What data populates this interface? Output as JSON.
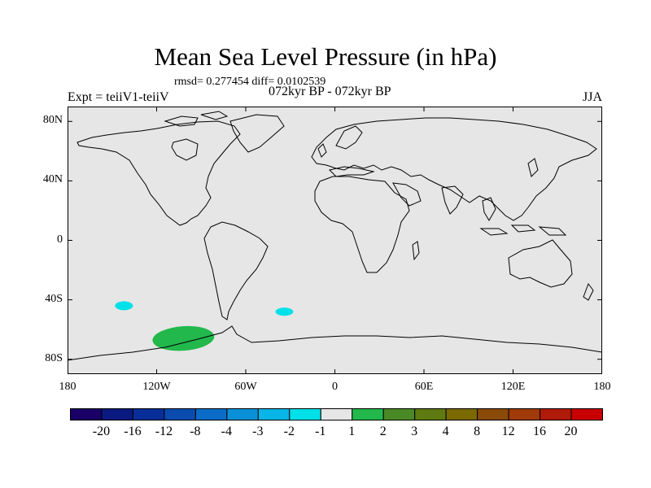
{
  "title": "Mean Sea Level Pressure (in hPa)",
  "stats": "rmsd= 0.277454 diff= 0.0102539",
  "experiment": "Expt = teiiV1-teiiV",
  "period": "072kyr BP - 072kyr BP",
  "season": "JJA",
  "map": {
    "projection": "cylindrical equidistant",
    "lat_range": [
      -90,
      90
    ],
    "lon_range": [
      -180,
      180
    ],
    "lat_ticks": [
      {
        "value": 80,
        "label": "80N"
      },
      {
        "value": 40,
        "label": "40N"
      },
      {
        "value": 0,
        "label": "0"
      },
      {
        "value": -40,
        "label": "40S"
      },
      {
        "value": -80,
        "label": "80S"
      }
    ],
    "lon_ticks": [
      {
        "value": -180,
        "label": "180"
      },
      {
        "value": -120,
        "label": "120W"
      },
      {
        "value": -60,
        "label": "60W"
      },
      {
        "value": 0,
        "label": "0"
      },
      {
        "value": 60,
        "label": "60E"
      },
      {
        "value": 120,
        "label": "120E"
      },
      {
        "value": 180,
        "label": "180"
      }
    ],
    "background_color": "#e6e6e6",
    "coastline_color": "#000000",
    "anomalies": [
      {
        "category": "-2 to -1",
        "color": "#00e0e8",
        "lon": -142,
        "lat": -44
      },
      {
        "category": "-2 to -1",
        "color": "#00e0e8",
        "lon": -34,
        "lat": -48
      },
      {
        "category": "1 to 2",
        "color": "#22b84c",
        "lon": -102,
        "lat": -66
      }
    ]
  },
  "colorbar": {
    "colors": [
      "#1a0066",
      "#0a1a80",
      "#0a2e99",
      "#0a4bb0",
      "#0a6cc7",
      "#0a90d6",
      "#08b5e6",
      "#00e0e8",
      "#e6e6e6",
      "#22b84c",
      "#4a8a26",
      "#5f7a10",
      "#7a6a00",
      "#8a4a08",
      "#a03a08",
      "#b01a08",
      "#c80000"
    ],
    "labels": [
      "-20",
      "-16",
      "-12",
      "-8",
      "-4",
      "-3",
      "-2",
      "-1",
      "1",
      "2",
      "3",
      "4",
      "8",
      "12",
      "16",
      "20"
    ]
  }
}
